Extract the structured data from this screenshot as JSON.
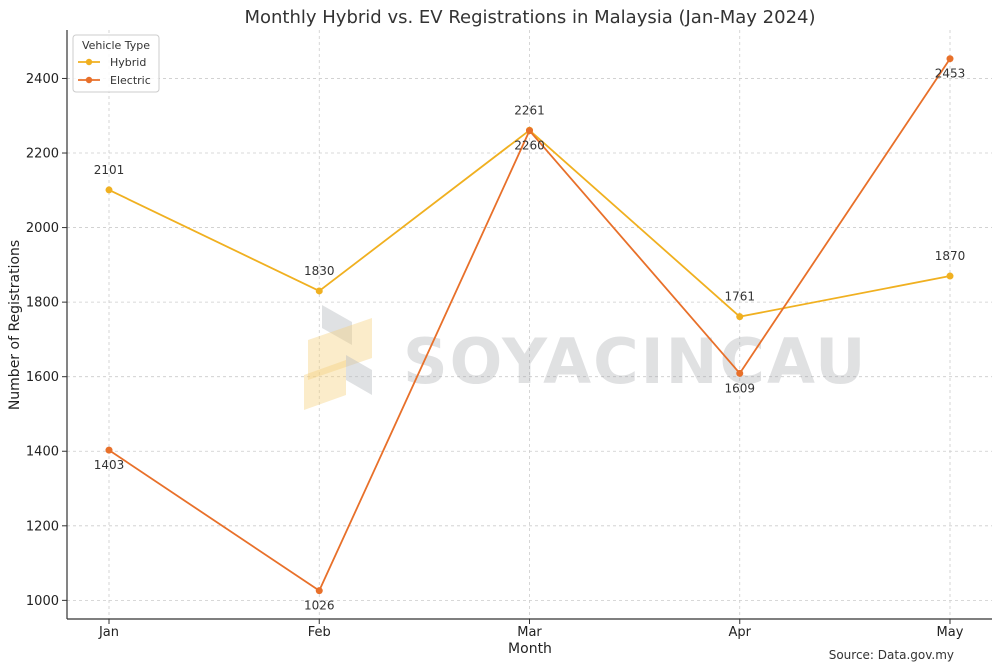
{
  "chart_data": {
    "type": "line",
    "title": "Monthly Hybrid vs. EV Registrations in Malaysia (Jan-May 2024)",
    "xlabel": "Month",
    "ylabel": "Number of Registrations",
    "categories": [
      "Jan",
      "Feb",
      "Mar",
      "Apr",
      "May"
    ],
    "ylim": [
      950,
      2530
    ],
    "yticks": [
      1000,
      1200,
      1400,
      1600,
      1800,
      2000,
      2200,
      2400
    ],
    "grid": true,
    "legend": {
      "title": "Vehicle Type",
      "placement": "top-left"
    },
    "series": [
      {
        "name": "Hybrid",
        "color": "#f0b020",
        "values": [
          2101,
          1830,
          2261,
          1761,
          1870
        ]
      },
      {
        "name": "Electric",
        "color": "#e8702a",
        "values": [
          1403,
          1026,
          2260,
          1609,
          2453
        ]
      }
    ],
    "source": "Source: Data.gov.my",
    "watermark": "SOYACINCAU"
  }
}
